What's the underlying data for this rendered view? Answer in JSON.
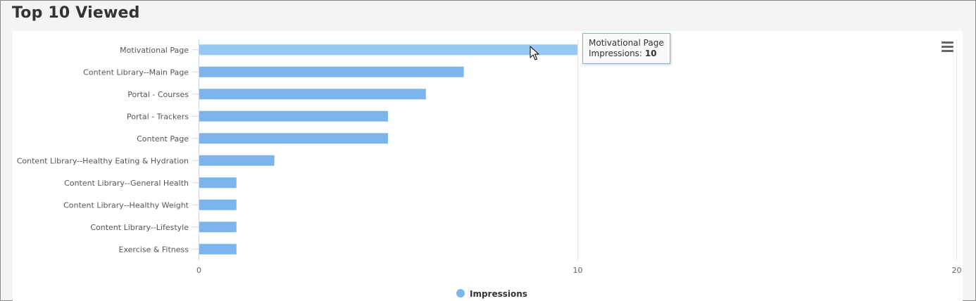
{
  "panel": {
    "title": "Top 10 Viewed"
  },
  "colors": {
    "bar": "#7cb5ec",
    "bar_hover": "#95c8f5",
    "grid": "#e6e6e6",
    "axis": "#ccd6eb"
  },
  "icons": {
    "menu": "hamburger-menu-icon",
    "legend": "legend-circle-icon",
    "cursor": "mouse-pointer-icon"
  },
  "tooltip": {
    "category": "Motivational Page",
    "series_label": "Impressions:",
    "value": "10"
  },
  "chart_data": {
    "type": "bar",
    "orientation": "horizontal",
    "categories": [
      "Motivational Page",
      "Content Library--Main Page",
      "Portal - Courses",
      "Portal - Trackers",
      "Content Page",
      "Content Library--Healthy Eating & Hydration",
      "Content Library--General Health",
      "Content Library--Healthy Weight",
      "Content Library--Lifestyle",
      "Exercise & Fitness"
    ],
    "series": [
      {
        "name": "Impressions",
        "values": [
          10,
          7,
          6,
          5,
          5,
          2,
          1,
          1,
          1,
          1
        ]
      }
    ],
    "xlim": [
      0,
      20
    ],
    "xticks": [
      "0",
      "10",
      "20"
    ],
    "highlighted_index": 0,
    "grid": true,
    "legend_position": "bottom-center"
  }
}
